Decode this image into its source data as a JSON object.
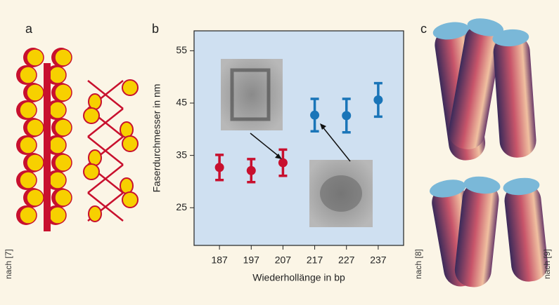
{
  "panel_labels": [
    "a",
    "b",
    "c"
  ],
  "credits": [
    "nach [7]",
    "nach [8]",
    "nach [9]"
  ],
  "chart_data": {
    "type": "errorbar",
    "x_label": "Wiederhollänge in bp",
    "y_label": "Faserdurchmesser in nm",
    "series": [
      {
        "color": "#c8102e",
        "x": [
          187,
          197,
          207
        ],
        "values": [
          32.7,
          32.1,
          33.6
        ],
        "errors": [
          2.4,
          2.2,
          2.5
        ]
      },
      {
        "color": "#1a75b8",
        "x": [
          217,
          227,
          237
        ],
        "values": [
          42.7,
          42.6,
          45.6
        ],
        "errors": [
          3.1,
          3.2,
          3.2
        ]
      }
    ],
    "xlim": [
      179,
      245
    ],
    "xticks": [
      187,
      197,
      207,
      217,
      227,
      237
    ],
    "ylim": [
      17.8,
      58.8
    ],
    "yticks": [
      25,
      35,
      45,
      55
    ]
  }
}
